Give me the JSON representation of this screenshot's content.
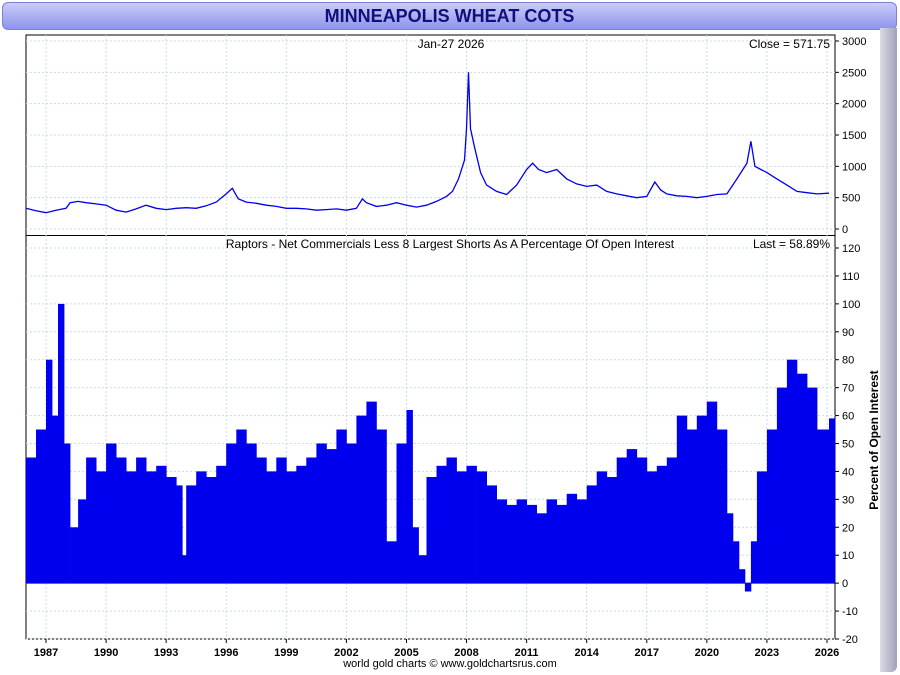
{
  "title": "MINNEAPOLIS WHEAT COTS",
  "footer": "world gold charts © www.goldchartsrus.com",
  "colors": {
    "series": "#0000ee",
    "grid": "#c8dce8",
    "title_bg": "#a9aef2"
  },
  "chart_data": [
    {
      "type": "line",
      "date_label": "Jan-27  2026",
      "last_label": "Close = 571.75",
      "ylim": [
        0,
        3000
      ],
      "yticks": [
        0,
        500,
        1000,
        1500,
        2000,
        2500,
        3000
      ],
      "xlim": [
        1986.0,
        2026.4
      ],
      "xticks": [
        "1987",
        "1990",
        "1993",
        "1996",
        "1999",
        "2002",
        "2005",
        "2008",
        "2011",
        "2014",
        "2017",
        "2020",
        "2023",
        "2026"
      ],
      "grid": true,
      "series": [
        {
          "x": [
            1986.0,
            1986.5,
            1987.0,
            1987.5,
            1988.0,
            1988.2,
            1988.6,
            1989.0,
            1989.5,
            1990.0,
            1990.5,
            1991.0,
            1991.5,
            1992.0,
            1992.5,
            1993.0,
            1993.5,
            1994.0,
            1994.5,
            1995.0,
            1995.5,
            1996.0,
            1996.3,
            1996.6,
            1997.0,
            1997.5,
            1998.0,
            1998.5,
            1999.0,
            1999.5,
            2000.0,
            2000.5,
            2001.0,
            2001.5,
            2002.0,
            2002.5,
            2002.8,
            2003.0,
            2003.5,
            2004.0,
            2004.5,
            2005.0,
            2005.5,
            2006.0,
            2006.5,
            2007.0,
            2007.3,
            2007.6,
            2007.9,
            2008.0,
            2008.1,
            2008.2,
            2008.4,
            2008.7,
            2009.0,
            2009.5,
            2010.0,
            2010.5,
            2011.0,
            2011.3,
            2011.6,
            2012.0,
            2012.5,
            2013.0,
            2013.5,
            2014.0,
            2014.5,
            2015.0,
            2015.5,
            2016.0,
            2016.5,
            2017.0,
            2017.4,
            2017.7,
            2018.0,
            2018.5,
            2019.0,
            2019.5,
            2020.0,
            2020.5,
            2021.0,
            2021.5,
            2022.0,
            2022.2,
            2022.4,
            2022.7,
            2023.0,
            2023.5,
            2024.0,
            2024.5,
            2025.0,
            2025.5,
            2026.1
          ],
          "values": [
            330,
            290,
            260,
            300,
            330,
            420,
            440,
            420,
            400,
            380,
            300,
            270,
            320,
            380,
            330,
            310,
            330,
            340,
            330,
            370,
            430,
            560,
            650,
            480,
            430,
            410,
            380,
            360,
            330,
            330,
            320,
            300,
            310,
            320,
            300,
            330,
            480,
            420,
            360,
            380,
            420,
            380,
            350,
            380,
            440,
            520,
            600,
            800,
            1100,
            1600,
            2500,
            1600,
            1300,
            900,
            700,
            600,
            550,
            700,
            950,
            1050,
            950,
            900,
            950,
            800,
            720,
            680,
            700,
            600,
            560,
            530,
            500,
            520,
            750,
            620,
            560,
            530,
            520,
            500,
            520,
            550,
            560,
            800,
            1050,
            1400,
            1000,
            950,
            900,
            800,
            700,
            600,
            580,
            560,
            572
          ]
        }
      ]
    },
    {
      "type": "bar",
      "title": "Raptors - Net Commercials Less 8 Largest Shorts As A Percentage Of Open Interest",
      "last_label": "Last = 58.89%",
      "ylabel": "Percent of Open Interest",
      "ylim": [
        -20,
        120
      ],
      "yticks": [
        -20,
        -10,
        0,
        10,
        20,
        30,
        40,
        50,
        60,
        70,
        80,
        90,
        100,
        110,
        120
      ],
      "xlim": [
        1986.0,
        2026.4
      ],
      "grid": true,
      "series": [
        {
          "x": [
            1986.0,
            1986.5,
            1987.0,
            1987.3,
            1987.6,
            1987.9,
            1988.2,
            1988.6,
            1989.0,
            1989.5,
            1990.0,
            1990.5,
            1991.0,
            1991.5,
            1992.0,
            1992.5,
            1993.0,
            1993.5,
            1993.8,
            1994.0,
            1994.5,
            1995.0,
            1995.5,
            1996.0,
            1996.5,
            1997.0,
            1997.5,
            1998.0,
            1998.5,
            1999.0,
            1999.5,
            2000.0,
            2000.5,
            2001.0,
            2001.5,
            2002.0,
            2002.5,
            2003.0,
            2003.5,
            2004.0,
            2004.5,
            2005.0,
            2005.3,
            2005.6,
            2006.0,
            2006.5,
            2007.0,
            2007.5,
            2008.0,
            2008.5,
            2009.0,
            2009.5,
            2010.0,
            2010.5,
            2011.0,
            2011.5,
            2012.0,
            2012.5,
            2013.0,
            2013.5,
            2014.0,
            2014.5,
            2015.0,
            2015.5,
            2016.0,
            2016.5,
            2017.0,
            2017.5,
            2018.0,
            2018.5,
            2019.0,
            2019.5,
            2020.0,
            2020.5,
            2021.0,
            2021.3,
            2021.6,
            2021.9,
            2022.2,
            2022.5,
            2023.0,
            2023.5,
            2024.0,
            2024.5,
            2025.0,
            2025.5,
            2026.1
          ],
          "values": [
            45,
            55,
            80,
            60,
            100,
            50,
            20,
            30,
            45,
            40,
            50,
            45,
            40,
            45,
            40,
            42,
            38,
            35,
            10,
            35,
            40,
            38,
            42,
            50,
            55,
            50,
            45,
            40,
            45,
            40,
            42,
            45,
            50,
            48,
            55,
            50,
            60,
            65,
            55,
            15,
            50,
            62,
            20,
            10,
            38,
            42,
            45,
            40,
            42,
            40,
            35,
            30,
            28,
            30,
            28,
            25,
            30,
            28,
            32,
            30,
            35,
            40,
            38,
            45,
            48,
            45,
            40,
            42,
            45,
            60,
            55,
            60,
            65,
            55,
            25,
            15,
            5,
            -3,
            15,
            40,
            55,
            70,
            80,
            75,
            70,
            55,
            59
          ]
        }
      ]
    }
  ]
}
